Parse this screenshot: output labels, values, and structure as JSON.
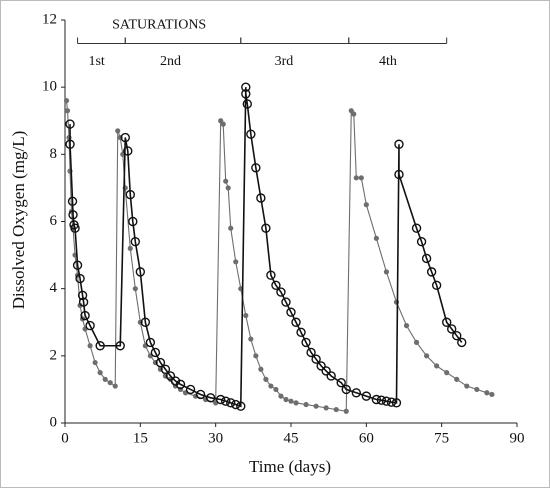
{
  "chart_data": {
    "type": "line",
    "xlabel": "Time (days)",
    "ylabel": "Dissolved Oxygen (mg/L)",
    "xlim": [
      0,
      90
    ],
    "xticks": [
      0,
      15,
      30,
      45,
      60,
      75,
      90
    ],
    "ylim": [
      0,
      12
    ],
    "yticks": [
      0,
      2,
      4,
      6,
      8,
      10,
      12
    ],
    "saturations": {
      "label": "SATURATIONS",
      "periods": [
        {
          "label": "1st",
          "start": 2.5,
          "end": 12
        },
        {
          "label": "2nd",
          "start": 12,
          "end": 35
        },
        {
          "label": "3rd",
          "start": 35,
          "end": 56.5
        },
        {
          "label": "4th",
          "start": 56.5,
          "end": 76
        }
      ]
    },
    "series": [
      {
        "color": "#6e6e6e",
        "marker": "filled",
        "x": [
          0.3,
          0.5,
          0.8,
          1,
          1.3,
          1.6,
          2,
          2.5,
          3,
          3.5,
          4,
          5,
          6,
          7,
          8,
          9,
          10,
          10.5,
          11,
          11.5,
          12,
          13,
          14,
          15,
          16,
          17,
          18,
          19,
          20,
          21,
          22,
          23,
          24,
          26,
          28,
          30,
          31,
          31.5,
          32,
          32.5,
          33,
          34,
          35,
          36,
          37,
          38,
          39,
          40,
          41,
          42,
          43,
          44,
          45,
          46,
          48,
          50,
          52,
          54,
          56,
          57,
          57.5,
          58,
          59,
          60,
          62,
          64,
          66,
          68,
          70,
          72,
          74,
          76,
          78,
          80,
          82,
          84,
          85
        ],
        "y": [
          9.6,
          9.3,
          8.5,
          7.5,
          6.3,
          5.8,
          5.0,
          4.4,
          3.5,
          3.1,
          2.8,
          2.3,
          1.8,
          1.5,
          1.3,
          1.2,
          1.1,
          8.7,
          8.5,
          8.0,
          7.0,
          5.2,
          4.0,
          3.0,
          2.3,
          2.0,
          1.8,
          1.6,
          1.4,
          1.3,
          1.1,
          1.0,
          0.9,
          0.8,
          0.7,
          0.6,
          9.0,
          8.9,
          7.2,
          7.0,
          5.8,
          4.8,
          4.0,
          3.2,
          2.5,
          2.0,
          1.6,
          1.3,
          1.1,
          1.0,
          0.8,
          0.7,
          0.65,
          0.6,
          0.55,
          0.5,
          0.45,
          0.4,
          0.35,
          9.3,
          9.2,
          7.3,
          7.3,
          6.5,
          5.5,
          4.5,
          3.6,
          2.9,
          2.4,
          2.0,
          1.7,
          1.5,
          1.3,
          1.1,
          1.0,
          0.9,
          0.85
        ]
      },
      {
        "color": "#111111",
        "marker": "open",
        "x": [
          1,
          1,
          1.5,
          1.6,
          1.8,
          2,
          2.5,
          3,
          3.5,
          3.7,
          4,
          5,
          7,
          11,
          12,
          12.5,
          13,
          13.5,
          14,
          15,
          16,
          17,
          18,
          19,
          20,
          21,
          22,
          23,
          25,
          27,
          29,
          31,
          32,
          33,
          34,
          35,
          36,
          36,
          36.3,
          37,
          38,
          39,
          40,
          41,
          42,
          43,
          44,
          45,
          46,
          47,
          48,
          49,
          50,
          51,
          52,
          53,
          55,
          56,
          58,
          60,
          62,
          63,
          64,
          65,
          66,
          66.5,
          66.5,
          70,
          71,
          72,
          73,
          74,
          76,
          77,
          78,
          79
        ],
        "y": [
          8.9,
          8.3,
          6.6,
          6.2,
          5.9,
          5.8,
          4.7,
          4.3,
          3.8,
          3.6,
          3.2,
          2.9,
          2.3,
          2.3,
          8.5,
          8.1,
          6.8,
          6.0,
          5.4,
          4.5,
          3.0,
          2.4,
          2.1,
          1.8,
          1.6,
          1.4,
          1.25,
          1.15,
          1.0,
          0.85,
          0.75,
          0.7,
          0.65,
          0.6,
          0.55,
          0.5,
          10.0,
          9.8,
          9.5,
          8.6,
          7.6,
          6.7,
          5.8,
          4.4,
          4.1,
          3.9,
          3.6,
          3.3,
          3.0,
          2.7,
          2.4,
          2.1,
          1.9,
          1.7,
          1.55,
          1.4,
          1.2,
          1.0,
          0.9,
          0.8,
          0.7,
          0.68,
          0.65,
          0.62,
          0.6,
          8.3,
          7.4,
          5.8,
          5.4,
          4.9,
          4.5,
          4.1,
          3.0,
          2.8,
          2.6,
          2.4
        ]
      }
    ]
  }
}
